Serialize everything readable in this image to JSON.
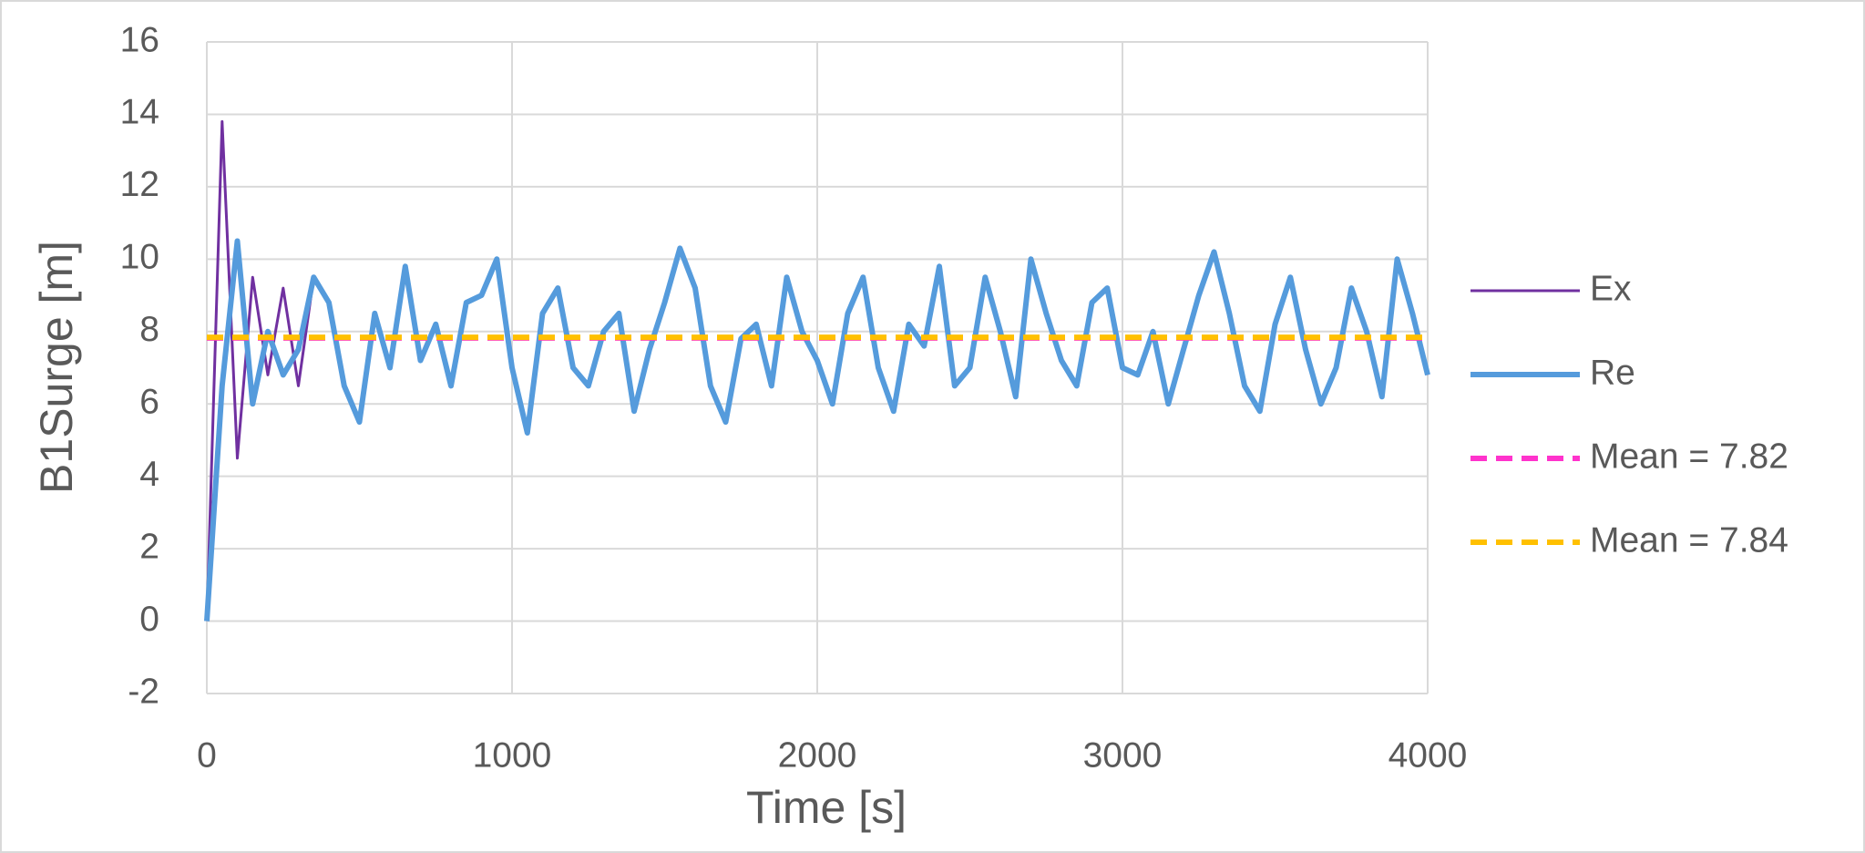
{
  "chart_data": {
    "type": "line",
    "xlabel": "Time [s]",
    "ylabel": "B1Surge [m]",
    "x": [
      0,
      50,
      100,
      150,
      200,
      250,
      300,
      350,
      400,
      450,
      500,
      550,
      600,
      650,
      700,
      750,
      800,
      850,
      900,
      950,
      1000,
      1050,
      1100,
      1150,
      1200,
      1250,
      1300,
      1350,
      1400,
      1450,
      1500,
      1550,
      1600,
      1650,
      1700,
      1750,
      1800,
      1850,
      1900,
      1950,
      2000,
      2050,
      2100,
      2150,
      2200,
      2250,
      2300,
      2350,
      2400,
      2450,
      2500,
      2550,
      2600,
      2650,
      2700,
      2750,
      2800,
      2850,
      2900,
      2950,
      3000,
      3050,
      3100,
      3150,
      3200,
      3250,
      3300,
      3350,
      3400,
      3450,
      3500,
      3550,
      3600,
      3650,
      3700,
      3750,
      3800,
      3850,
      3900,
      3950,
      4000
    ],
    "series": [
      {
        "name": "Ex",
        "color": "#7030a0",
        "width": 3,
        "dashed": false,
        "values": [
          0,
          13.8,
          4.5,
          9.5,
          6.8,
          9.2,
          6.5,
          9.5,
          8.8,
          6.5,
          5.5,
          8.5,
          7.0,
          9.8,
          7.2,
          8.2,
          6.5,
          8.8,
          9.0,
          10.0,
          7.0,
          5.2,
          8.5,
          9.2,
          7.0,
          6.5,
          8.0,
          8.5,
          5.8,
          7.5,
          8.8,
          10.3,
          9.2,
          6.5,
          5.5,
          7.8,
          8.2,
          6.5,
          9.5,
          8.0,
          7.2,
          6.0,
          8.5,
          9.5,
          7.0,
          5.8,
          8.2,
          7.6,
          9.8,
          6.5,
          7.0,
          9.5,
          8.0,
          6.2,
          10.0,
          8.5,
          7.2,
          6.5,
          8.8,
          9.2,
          7.0,
          6.8,
          8.0,
          6.0,
          7.5,
          9.0,
          10.2,
          8.5,
          6.5,
          5.8,
          8.2,
          9.5,
          7.5,
          6.0,
          7.0,
          9.2,
          8.0,
          6.2,
          10.0,
          8.5,
          6.8
        ]
      },
      {
        "name": "Re",
        "color": "#559bdc",
        "width": 6,
        "dashed": false,
        "values": [
          0,
          6.5,
          10.5,
          6.0,
          8.0,
          6.8,
          7.5,
          9.5,
          8.8,
          6.5,
          5.5,
          8.5,
          7.0,
          9.8,
          7.2,
          8.2,
          6.5,
          8.8,
          9.0,
          10.0,
          7.0,
          5.2,
          8.5,
          9.2,
          7.0,
          6.5,
          8.0,
          8.5,
          5.8,
          7.5,
          8.8,
          10.3,
          9.2,
          6.5,
          5.5,
          7.8,
          8.2,
          6.5,
          9.5,
          8.0,
          7.2,
          6.0,
          8.5,
          9.5,
          7.0,
          5.8,
          8.2,
          7.6,
          9.8,
          6.5,
          7.0,
          9.5,
          8.0,
          6.2,
          10.0,
          8.5,
          7.2,
          6.5,
          8.8,
          9.2,
          7.0,
          6.8,
          8.0,
          6.0,
          7.5,
          9.0,
          10.2,
          8.5,
          6.5,
          5.8,
          8.2,
          9.5,
          7.5,
          6.0,
          7.0,
          9.2,
          8.0,
          6.2,
          10.0,
          8.5,
          6.8
        ]
      },
      {
        "name": "Mean = 7.82",
        "color": "#ff33cc",
        "width": 6,
        "dashed": true,
        "values": [
          7.82,
          7.82,
          7.82,
          7.82,
          7.82,
          7.82,
          7.82,
          7.82,
          7.82,
          7.82,
          7.82,
          7.82,
          7.82,
          7.82,
          7.82,
          7.82,
          7.82,
          7.82,
          7.82,
          7.82,
          7.82,
          7.82,
          7.82,
          7.82,
          7.82,
          7.82,
          7.82,
          7.82,
          7.82,
          7.82,
          7.82,
          7.82,
          7.82,
          7.82,
          7.82,
          7.82,
          7.82,
          7.82,
          7.82,
          7.82,
          7.82,
          7.82,
          7.82,
          7.82,
          7.82,
          7.82,
          7.82,
          7.82,
          7.82,
          7.82,
          7.82,
          7.82,
          7.82,
          7.82,
          7.82,
          7.82,
          7.82,
          7.82,
          7.82,
          7.82,
          7.82,
          7.82,
          7.82,
          7.82,
          7.82,
          7.82,
          7.82,
          7.82,
          7.82,
          7.82,
          7.82,
          7.82,
          7.82,
          7.82,
          7.82,
          7.82,
          7.82,
          7.82,
          7.82,
          7.82,
          7.82
        ]
      },
      {
        "name": "Mean = 7.84",
        "color": "#ffc000",
        "width": 6,
        "dashed": true,
        "values": [
          7.84,
          7.84,
          7.84,
          7.84,
          7.84,
          7.84,
          7.84,
          7.84,
          7.84,
          7.84,
          7.84,
          7.84,
          7.84,
          7.84,
          7.84,
          7.84,
          7.84,
          7.84,
          7.84,
          7.84,
          7.84,
          7.84,
          7.84,
          7.84,
          7.84,
          7.84,
          7.84,
          7.84,
          7.84,
          7.84,
          7.84,
          7.84,
          7.84,
          7.84,
          7.84,
          7.84,
          7.84,
          7.84,
          7.84,
          7.84,
          7.84,
          7.84,
          7.84,
          7.84,
          7.84,
          7.84,
          7.84,
          7.84,
          7.84,
          7.84,
          7.84,
          7.84,
          7.84,
          7.84,
          7.84,
          7.84,
          7.84,
          7.84,
          7.84,
          7.84,
          7.84,
          7.84,
          7.84,
          7.84,
          7.84,
          7.84,
          7.84,
          7.84,
          7.84,
          7.84,
          7.84,
          7.84,
          7.84,
          7.84,
          7.84,
          7.84,
          7.84,
          7.84,
          7.84,
          7.84,
          7.84
        ]
      }
    ],
    "xlim": [
      0,
      4000
    ],
    "xticks": [
      0,
      1000,
      2000,
      3000,
      4000
    ],
    "ylim": [
      -2,
      16
    ],
    "yticks": [
      -2,
      0,
      2,
      4,
      6,
      8,
      10,
      12,
      14,
      16
    ],
    "grid": true,
    "legend": "right"
  }
}
